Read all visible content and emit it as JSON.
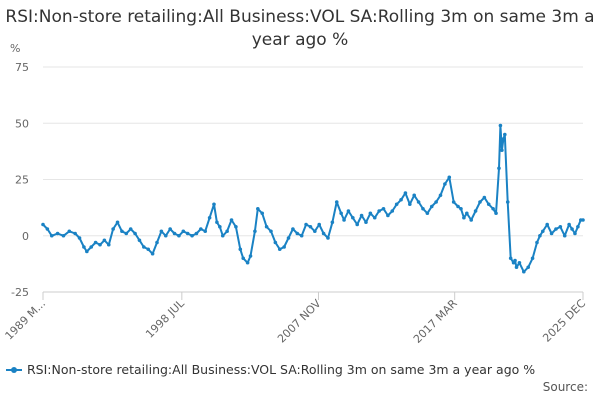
{
  "chart_data": {
    "type": "line",
    "title": "RSI:Non-store retailing:All Business:VOL SA:Rolling 3m on same 3m a year ago %",
    "ylabel": "%",
    "ylim": [
      -25,
      75
    ],
    "yticks": [
      "75",
      "50",
      "25",
      "0",
      "-25"
    ],
    "xlim": [
      1989.0,
      2025.95
    ],
    "xticks": [
      {
        "label": "1989 M...",
        "x": 1989.0
      },
      {
        "label": "1998 JUL",
        "x": 1998.5
      },
      {
        "label": "2007 NOV",
        "x": 2007.85
      },
      {
        "label": "2017 MAR",
        "x": 2017.17
      },
      {
        "label": "2025 DEC",
        "x": 2025.95
      }
    ],
    "grid": "horizontal",
    "legend": "bottom-left",
    "series": [
      {
        "name": "RSI:Non-store retailing:All Business:VOL SA:Rolling 3m on same 3m a year ago %",
        "color": "#1a82c4",
        "x": [
          1989.0,
          1989.3,
          1989.6,
          1990.0,
          1990.4,
          1990.8,
          1991.2,
          1991.5,
          1991.8,
          1992.0,
          1992.3,
          1992.6,
          1992.9,
          1993.2,
          1993.5,
          1993.8,
          1994.1,
          1994.4,
          1994.7,
          1995.0,
          1995.3,
          1995.6,
          1995.9,
          1996.2,
          1996.5,
          1996.8,
          1997.1,
          1997.4,
          1997.7,
          1998.0,
          1998.3,
          1998.6,
          1998.9,
          1999.2,
          1999.5,
          1999.8,
          2000.1,
          2000.4,
          2000.7,
          2000.9,
          2001.1,
          2001.3,
          2001.6,
          2001.9,
          2002.2,
          2002.5,
          2002.7,
          2003.0,
          2003.2,
          2003.5,
          2003.7,
          2004.0,
          2004.3,
          2004.6,
          2004.9,
          2005.2,
          2005.5,
          2005.8,
          2006.1,
          2006.4,
          2006.7,
          2007.0,
          2007.3,
          2007.6,
          2007.9,
          2008.2,
          2008.5,
          2008.8,
          2009.1,
          2009.4,
          2009.6,
          2009.9,
          2010.2,
          2010.5,
          2010.8,
          2011.1,
          2011.4,
          2011.7,
          2012.0,
          2012.3,
          2012.6,
          2012.9,
          2013.2,
          2013.5,
          2013.8,
          2014.1,
          2014.4,
          2014.7,
          2015.0,
          2015.3,
          2015.6,
          2015.9,
          2016.2,
          2016.5,
          2016.8,
          2017.1,
          2017.4,
          2017.6,
          2017.8,
          2018.0,
          2018.3,
          2018.6,
          2018.9,
          2019.2,
          2019.5,
          2019.8,
          2020.0,
          2020.2,
          2020.3,
          2020.4,
          2020.5,
          2020.6,
          2020.8,
          2021.0,
          2021.2,
          2021.3,
          2021.4,
          2021.6,
          2021.9,
          2022.2,
          2022.5,
          2022.8,
          2023.0,
          2023.2,
          2023.5,
          2023.8,
          2024.1,
          2024.4,
          2024.7,
          2025.0,
          2025.2,
          2025.4,
          2025.6,
          2025.8,
          2025.95
        ],
        "values": [
          5,
          3,
          0,
          1,
          0,
          2,
          1,
          -1,
          -5,
          -7,
          -5,
          -3,
          -4,
          -2,
          -4,
          3,
          6,
          2,
          1,
          3,
          1,
          -2,
          -5,
          -6,
          -8,
          -3,
          2,
          0,
          3,
          1,
          0,
          2,
          1,
          0,
          1,
          3,
          2,
          8,
          14,
          6,
          4,
          0,
          2,
          7,
          4,
          -6,
          -10,
          -12,
          -9,
          2,
          12,
          10,
          4,
          2,
          -3,
          -6,
          -5,
          -1,
          3,
          1,
          0,
          5,
          4,
          2,
          5,
          1,
          -1,
          6,
          15,
          10,
          7,
          11,
          8,
          5,
          9,
          6,
          10,
          8,
          11,
          12,
          9,
          11,
          14,
          16,
          19,
          14,
          18,
          15,
          12,
          10,
          13,
          15,
          18,
          23,
          26,
          15,
          13,
          12,
          8,
          10,
          7,
          11,
          15,
          17,
          14,
          12,
          10,
          30,
          49,
          38,
          43,
          45,
          15,
          -10,
          -12,
          -11,
          -14,
          -12,
          -16,
          -14,
          -10,
          -3,
          0,
          2,
          5,
          1,
          3,
          4,
          0,
          5,
          3,
          1,
          4,
          7,
          7
        ]
      }
    ]
  },
  "source_label": "Source:"
}
